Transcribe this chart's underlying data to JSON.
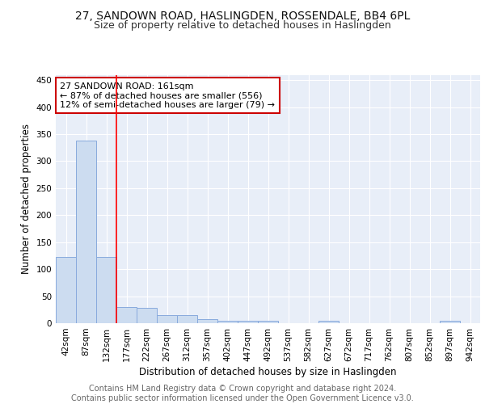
{
  "title1": "27, SANDOWN ROAD, HASLINGDEN, ROSSENDALE, BB4 6PL",
  "title2": "Size of property relative to detached houses in Haslingden",
  "xlabel": "Distribution of detached houses by size in Haslingden",
  "ylabel": "Number of detached properties",
  "footer1": "Contains HM Land Registry data © Crown copyright and database right 2024.",
  "footer2": "Contains public sector information licensed under the Open Government Licence v3.0.",
  "bin_labels": [
    "42sqm",
    "87sqm",
    "132sqm",
    "177sqm",
    "222sqm",
    "267sqm",
    "312sqm",
    "357sqm",
    "402sqm",
    "447sqm",
    "492sqm",
    "537sqm",
    "582sqm",
    "627sqm",
    "672sqm",
    "717sqm",
    "762sqm",
    "807sqm",
    "852sqm",
    "897sqm",
    "942sqm"
  ],
  "bar_heights": [
    122,
    338,
    122,
    30,
    29,
    15,
    15,
    7,
    5,
    5,
    4,
    0,
    0,
    4,
    0,
    0,
    0,
    0,
    0,
    4,
    0
  ],
  "bar_color": "#ccdcf0",
  "bar_edge_color": "#88aadd",
  "bar_width": 1.0,
  "red_line_x": 2.5,
  "annotation_line1": "27 SANDOWN ROAD: 161sqm",
  "annotation_line2": "← 87% of detached houses are smaller (556)",
  "annotation_line3": "12% of semi-detached houses are larger (79) →",
  "annotation_box_color": "#ffffff",
  "annotation_box_edge": "#cc0000",
  "ylim": [
    0,
    460
  ],
  "yticks": [
    0,
    50,
    100,
    150,
    200,
    250,
    300,
    350,
    400,
    450
  ],
  "background_color": "#e8eef8",
  "grid_color": "#ffffff",
  "title1_fontsize": 10,
  "title2_fontsize": 9,
  "axis_label_fontsize": 8.5,
  "tick_fontsize": 7.5,
  "footer_fontsize": 7,
  "annotation_fontsize": 8
}
